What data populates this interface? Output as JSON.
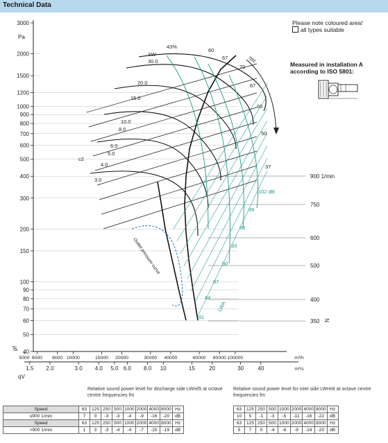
{
  "header": {
    "title": "Technical Data"
  },
  "note": {
    "line1": "Please note coloured area!",
    "line2": "all types suitable"
  },
  "measurement": {
    "line1": "Measured in installation A",
    "line2": "according to ISO 5801:"
  },
  "captions": {
    "discharge": "Relative sound power level for discharge side LWrel5 at octave centre frequencies fm",
    "inlet": "Relative sound power level for inlet side LWrel4 at octave centre frequencies fm"
  },
  "chart_data": {
    "type": "line",
    "y_axis": {
      "unit": "Pa",
      "symbol": "pf",
      "scale": "log",
      "range": [
        40,
        3000
      ],
      "ticks": [
        "3000",
        "2000",
        "1500",
        "1200",
        "1000",
        "900",
        "800",
        "700",
        "600",
        "500",
        "400",
        "300",
        "200",
        "150",
        "100",
        "90",
        "80",
        "70",
        "60",
        "50",
        "40"
      ]
    },
    "x_axis_m3h": {
      "unit": "m³/h",
      "ticks": [
        "5000",
        "6000",
        "8000",
        "10000",
        "15000",
        "20000",
        "30000",
        "40000",
        "60000",
        "80000",
        "100000"
      ]
    },
    "x_axis_m3s": {
      "symbol": "qV",
      "ticks": [
        "1.5",
        "2.0",
        "3.0",
        "4.0",
        "5.0",
        "6.0",
        "8.0",
        "10",
        "15",
        "20",
        "30",
        "40"
      ],
      "unit": "m³/s"
    },
    "speed_axis": {
      "label": "N",
      "ticks": [
        "900 1/min",
        "750",
        "600",
        "500",
        "400",
        "350"
      ]
    },
    "power_curves_kw": [
      "30.0",
      "20.0",
      "15.0",
      "10.0",
      "8.0",
      "6.0",
      "5.0",
      "4.0",
      "3.0"
    ],
    "power_unit": "kW",
    "efficiency_curves": [
      "43%",
      "60",
      "67",
      "70",
      "67",
      "60",
      "50",
      "37"
    ],
    "efficiency_label": "ηst",
    "velocity_label": "c2",
    "sound_levels": [
      "102 dB",
      "99",
      "96",
      "93",
      "90",
      "87",
      "84",
      "81"
    ],
    "sound_axis_label": "LWA",
    "pressure_curve_label": "Outlet pressure curve"
  },
  "sound_tables": {
    "discharge": {
      "hz_row": [
        "63",
        "125",
        "250",
        "500",
        "1000",
        "2000",
        "4000",
        "8000",
        "Hz"
      ],
      "rows": [
        {
          "label": "Speed",
          "values": []
        },
        {
          "label": "≤900 1/min",
          "values": [
            "7",
            "0",
            "-3",
            "-3",
            "-4",
            "-9",
            "-16",
            "-20",
            "dB"
          ]
        },
        {
          "label": "Speed",
          "values": []
        },
        {
          "label": ">900 1/min",
          "values": [
            "1",
            "3",
            "-3",
            "-4",
            "-4",
            "-7",
            "-15",
            "-19",
            "dB"
          ]
        }
      ]
    },
    "inlet": {
      "hz_row": [
        "63",
        "125",
        "250",
        "500",
        "1000",
        "2000",
        "4000",
        "8000",
        "Hz"
      ],
      "rows": [
        {
          "values": []
        },
        {
          "values": [
            "10",
            "5",
            "-1",
            "-3",
            "-5",
            "-11",
            "-16",
            "-22",
            "dB"
          ]
        },
        {
          "values": []
        },
        {
          "values": [
            "5",
            "7",
            "0",
            "-4",
            "-6",
            "-9",
            "-14",
            "-20",
            "dB"
          ]
        }
      ]
    }
  }
}
